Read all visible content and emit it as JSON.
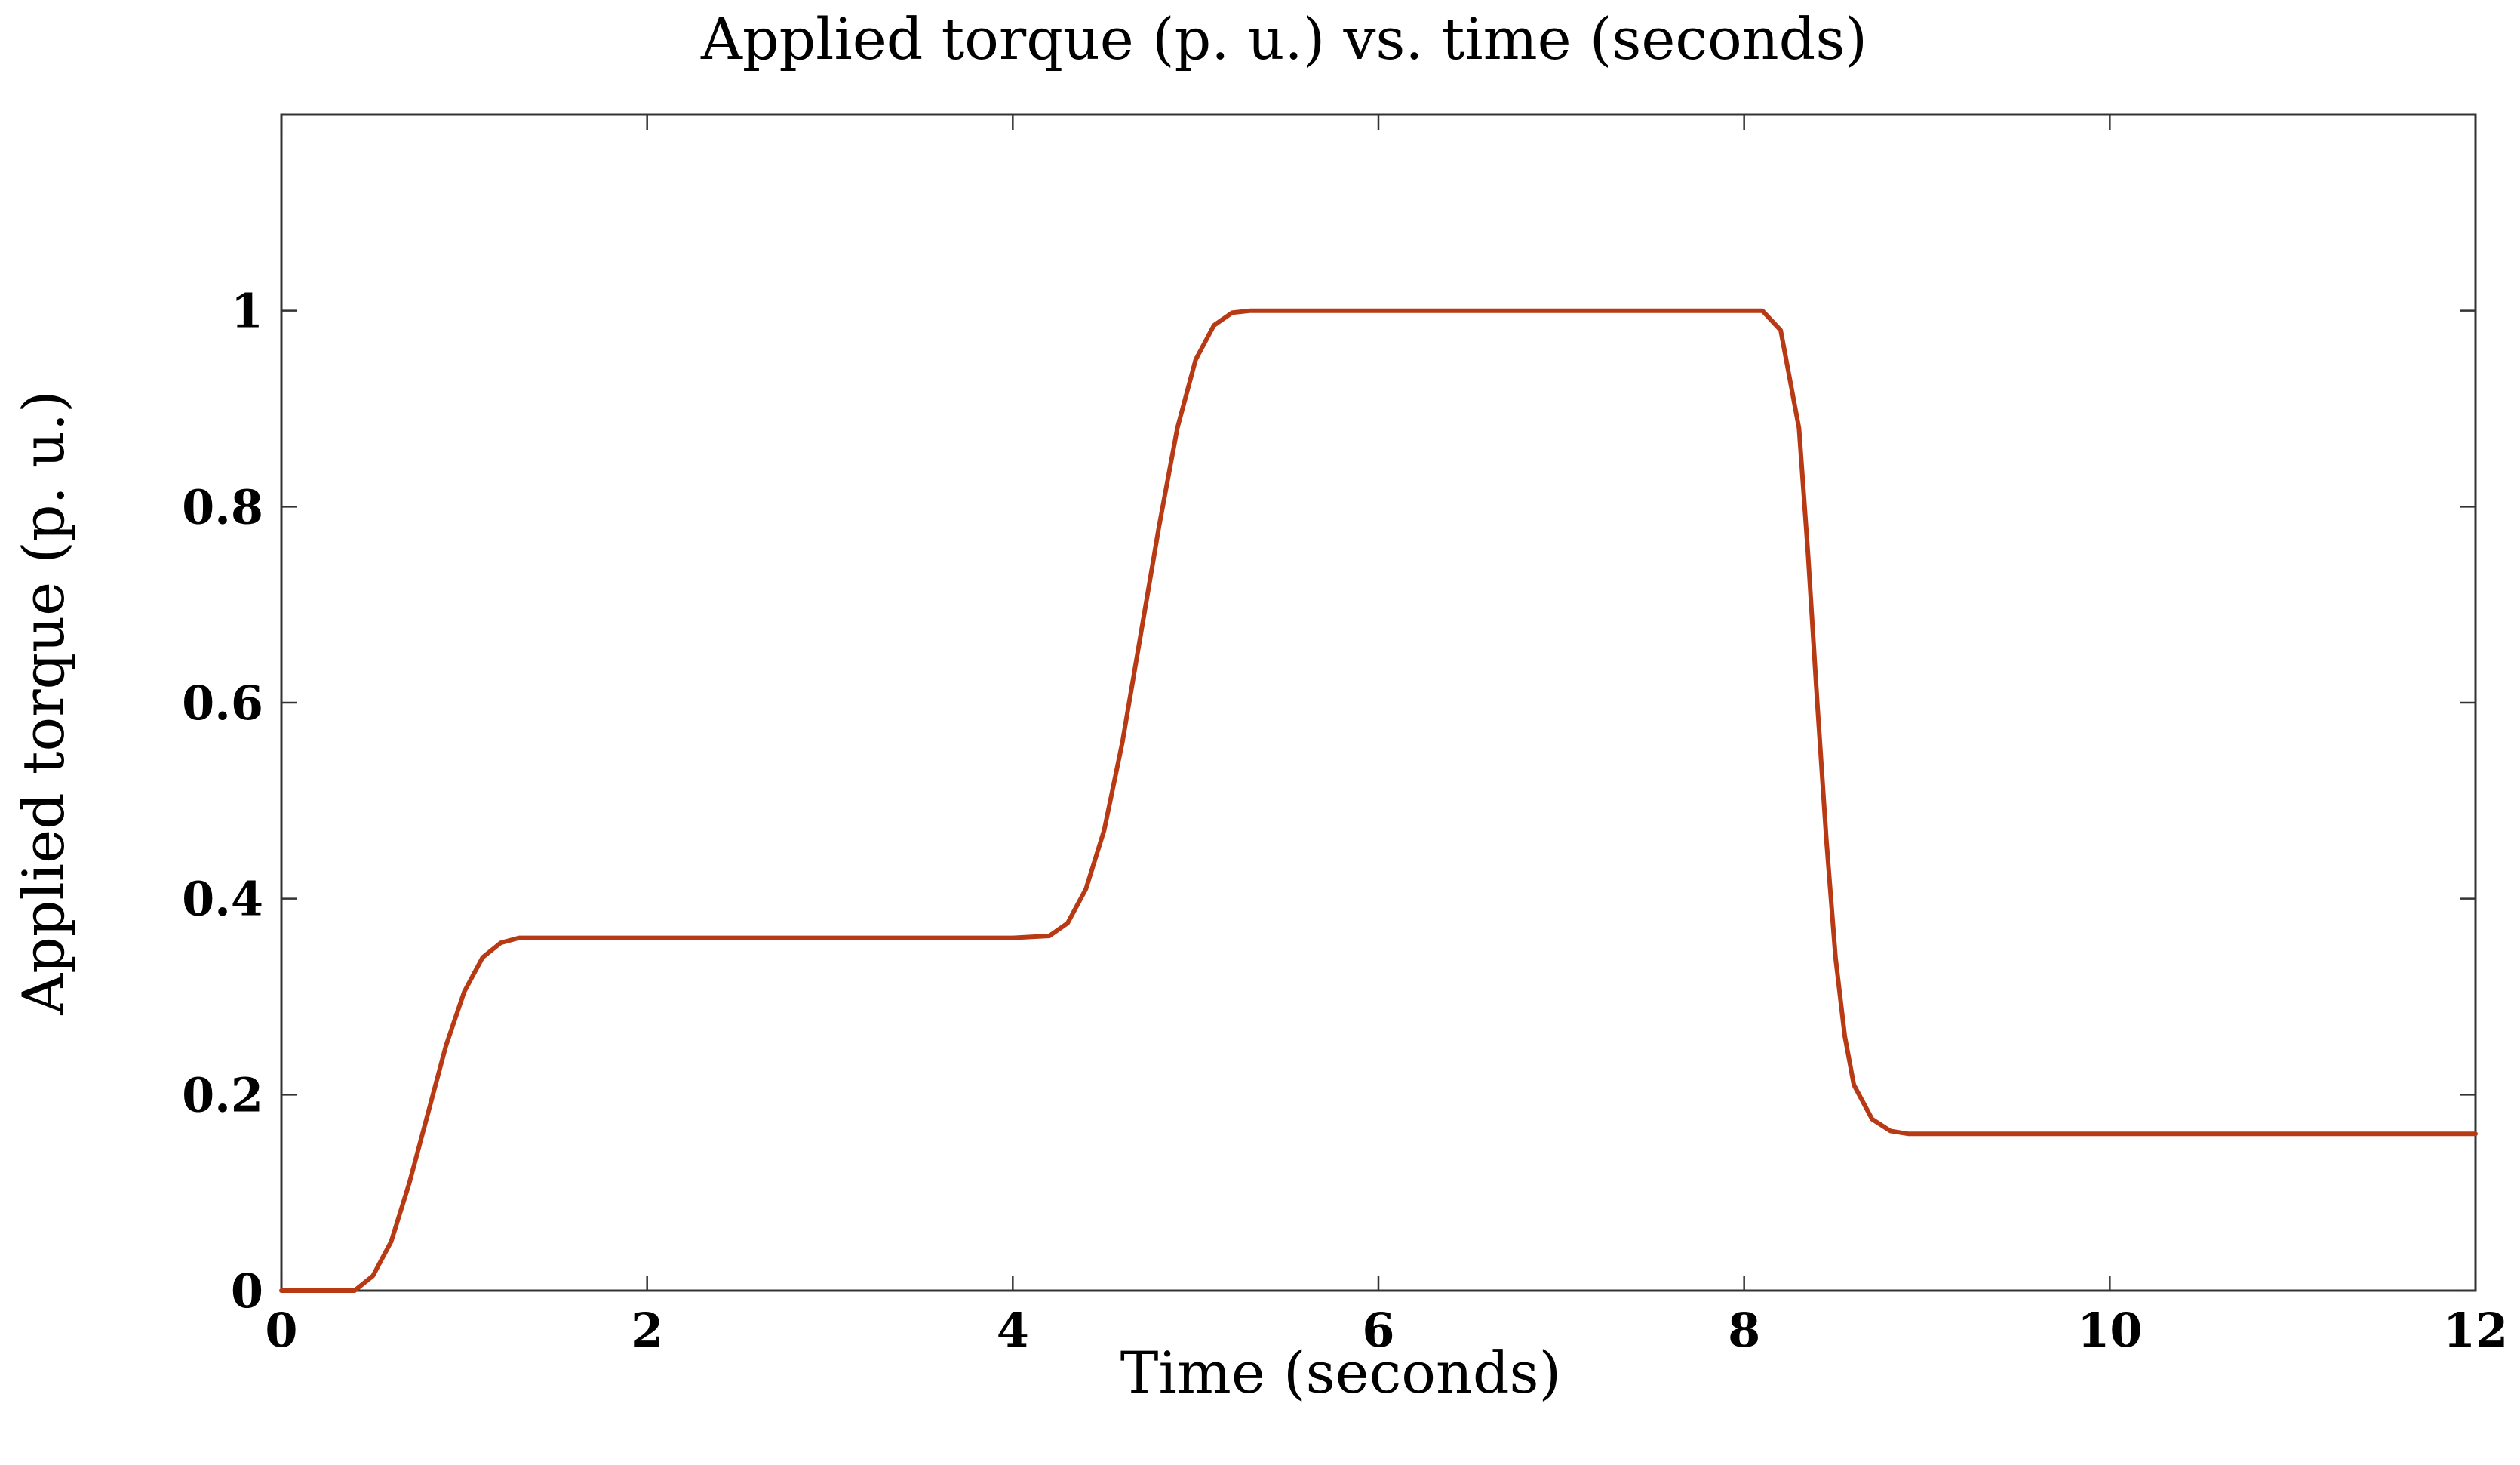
{
  "chart_data": {
    "type": "line",
    "title": "Applied torque (p. u.) vs. time (seconds)",
    "xlabel": "Time (seconds)",
    "ylabel": "Applied torque (p. u.)",
    "xlim": [
      0,
      12
    ],
    "ylim": [
      0,
      1.2
    ],
    "xticks": [
      0,
      2,
      4,
      6,
      8,
      10,
      12
    ],
    "xtick_labels": [
      "0",
      "2",
      "4",
      "6",
      "8",
      "10",
      "12"
    ],
    "yticks": [
      0,
      0.2,
      0.4,
      0.6,
      0.8,
      1
    ],
    "ytick_labels": [
      "0",
      "0.2",
      "0.4",
      "0.6",
      "0.8",
      "1"
    ],
    "grid": false,
    "legend": "none",
    "line_color": "#b83a14",
    "series": [
      {
        "x": [
          0,
          0.4,
          0.5,
          0.6,
          0.7,
          0.8,
          0.9,
          1.0,
          1.1,
          1.2,
          1.3,
          1.5,
          2.0,
          3.0,
          4.0,
          4.2,
          4.3,
          4.4,
          4.5,
          4.6,
          4.7,
          4.8,
          4.9,
          5.0,
          5.1,
          5.2,
          5.3,
          5.5,
          6.0,
          7.0,
          8.0,
          8.1,
          8.2,
          8.3,
          8.35,
          8.4,
          8.45,
          8.5,
          8.55,
          8.6,
          8.7,
          8.8,
          8.9,
          9.0,
          10.0,
          11.0,
          12.0
        ],
        "y": [
          0,
          0,
          0.015,
          0.05,
          0.11,
          0.18,
          0.25,
          0.305,
          0.34,
          0.355,
          0.36,
          0.36,
          0.36,
          0.36,
          0.36,
          0.362,
          0.375,
          0.41,
          0.47,
          0.56,
          0.67,
          0.78,
          0.88,
          0.95,
          0.985,
          0.998,
          1.0,
          1.0,
          1.0,
          1.0,
          1.0,
          1.0,
          0.98,
          0.88,
          0.75,
          0.6,
          0.46,
          0.34,
          0.26,
          0.21,
          0.175,
          0.163,
          0.16,
          0.16,
          0.16,
          0.16,
          0.16
        ]
      }
    ]
  }
}
